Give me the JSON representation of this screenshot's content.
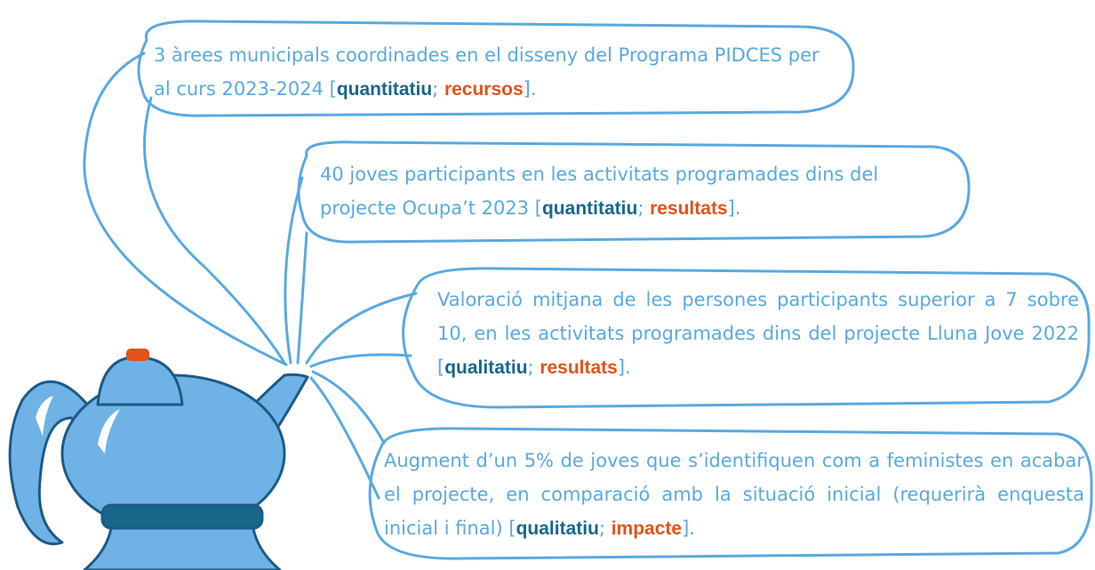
{
  "bubbles": [
    {
      "text": "3 àrees municipals coordinades en el disseny del Programa PIDCES per al curs 2023-2024",
      "open": "[",
      "kind": "quantitatiu",
      "separator": ";",
      "category": "recursos",
      "close": "]."
    },
    {
      "text": "40 joves participants en les activitats programades dins del projecte Ocupa’t 2023",
      "open": "[",
      "kind": "quantitatiu",
      "separator": ";",
      "category": "resultats",
      "close": "]."
    },
    {
      "text": "Valoració mitjana de les persones participants superior a 7 sobre 10, en les activitats programades dins del projecte Lluna Jove 2022",
      "open": "[",
      "kind": "qualitatiu",
      "separator": ";",
      "category": "resultats",
      "close": "]."
    },
    {
      "text": "Augment d’un 5% de joves que s’identifiquen com a feministes en acabar el projecte, en comparació amb la situació inicial (requerirà enquesta inicial i final)",
      "open": "[",
      "kind": "qualitatiu",
      "separator": ";",
      "category": "impacte",
      "close": "]."
    }
  ]
}
